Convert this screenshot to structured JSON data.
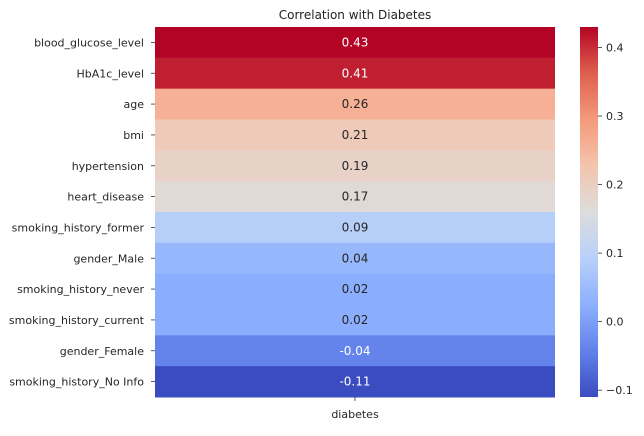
{
  "chart_data": {
    "type": "heatmap",
    "title": "Correlation with Diabetes",
    "xlabel": "",
    "ylabel": "",
    "columns": [
      "diabetes"
    ],
    "rows": [
      "blood_glucose_level",
      "HbA1c_level",
      "age",
      "bmi",
      "hypertension",
      "heart_disease",
      "smoking_history_former",
      "gender_Male",
      "smoking_history_never",
      "smoking_history_current",
      "gender_Female",
      "smoking_history_No Info"
    ],
    "values": [
      0.43,
      0.41,
      0.26,
      0.21,
      0.19,
      0.17,
      0.09,
      0.04,
      0.02,
      0.02,
      -0.04,
      -0.11
    ],
    "value_labels": [
      "0.43",
      "0.41",
      "0.26",
      "0.21",
      "0.19",
      "0.17",
      "0.09",
      "0.04",
      "0.02",
      "0.02",
      "-0.04",
      "-0.11"
    ],
    "colormap": "coolwarm",
    "colorbar": {
      "range": [
        -0.11,
        0.43
      ],
      "ticks": [
        -0.1,
        0.0,
        0.1,
        0.2,
        0.3,
        0.4
      ],
      "tick_labels": [
        "−0.1",
        "0.0",
        "0.1",
        "0.2",
        "0.3",
        "0.4"
      ]
    },
    "grid": false,
    "legend": "colorbar-right"
  }
}
